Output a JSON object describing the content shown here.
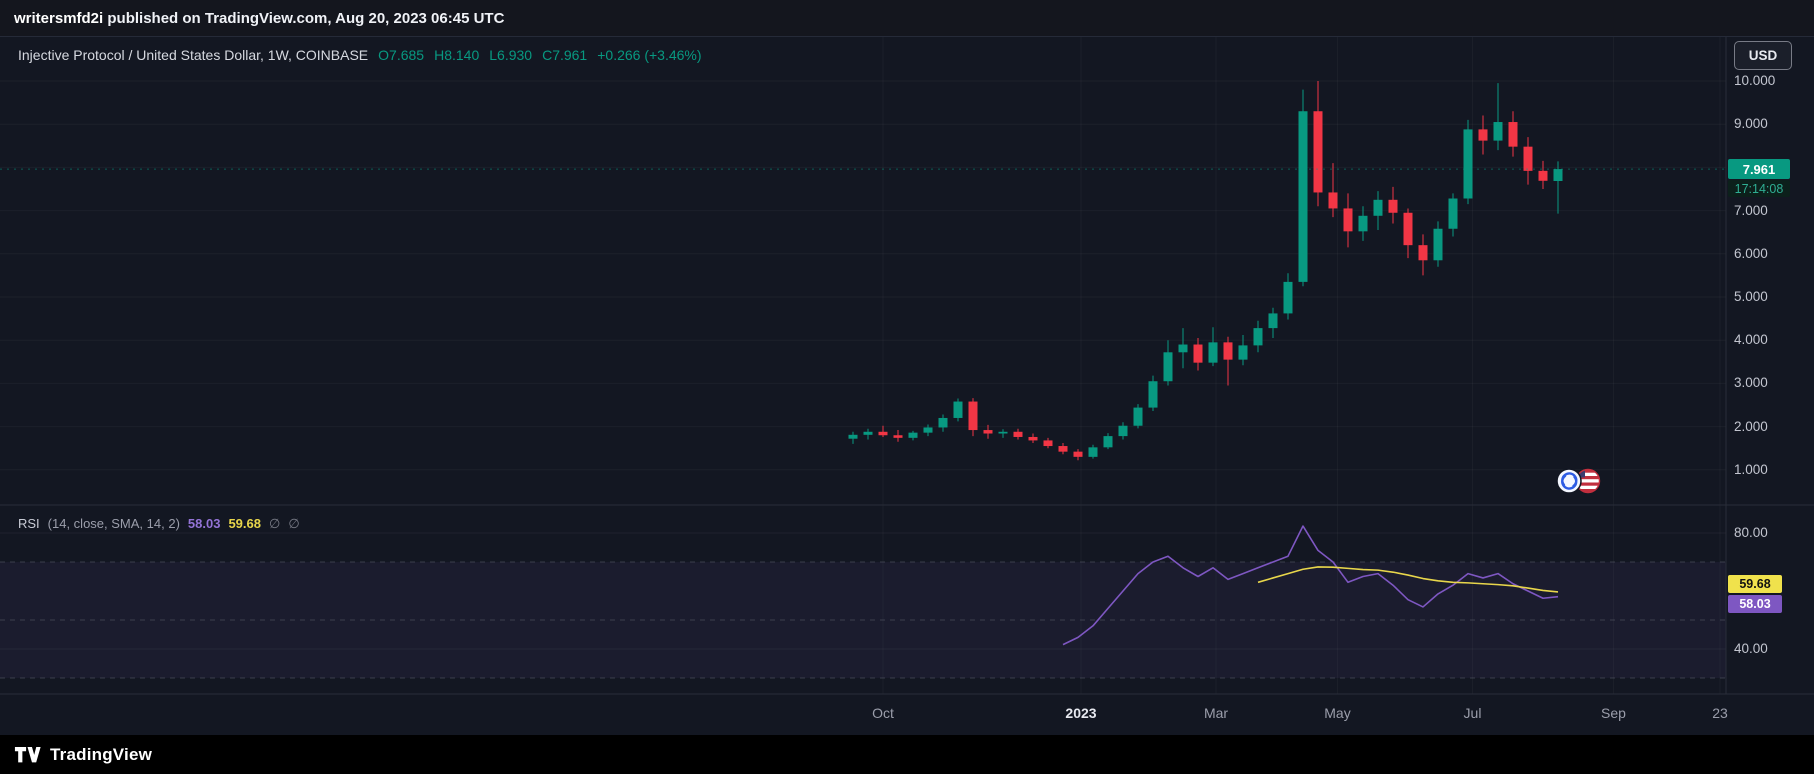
{
  "banner": {
    "username": "writersmfd2i",
    "rest": " published on TradingView.com, Aug 20, 2023 06:45 UTC"
  },
  "header": {
    "symbol_title": "Injective Protocol / United States Dollar, 1W, COINBASE",
    "ohlc": [
      "O7.685",
      "H8.140",
      "L6.930",
      "C7.961"
    ],
    "change": "+0.266 (+3.46%)"
  },
  "price_scale": {
    "currency_button": "USD",
    "labels": [
      {
        "text": "10.000",
        "value": 10
      },
      {
        "text": "9.000",
        "value": 9
      },
      {
        "text": "7.000",
        "value": 7
      },
      {
        "text": "6.000",
        "value": 6
      },
      {
        "text": "5.000",
        "value": 5
      },
      {
        "text": "4.000",
        "value": 4
      },
      {
        "text": "3.000",
        "value": 3
      },
      {
        "text": "2.000",
        "value": 2
      },
      {
        "text": "1.000",
        "value": 1
      }
    ],
    "price_badge": "7.961",
    "countdown": "17:14:08"
  },
  "rsi_panel": {
    "title": "RSI",
    "params": "(14, close, SMA, 14, 2)",
    "value": "58.03",
    "sma": "59.68",
    "hidden_1": "∅",
    "hidden_2": "∅",
    "scale_labels": [
      {
        "text": "80.00",
        "value": 80
      },
      {
        "text": "40.00",
        "value": 40
      }
    ]
  },
  "time_axis": {
    "ticks": [
      {
        "label": "Oct",
        "week": 2,
        "major": false
      },
      {
        "label": "2023",
        "week": 15.2,
        "major": true
      },
      {
        "label": "Mar",
        "week": 24.2,
        "major": false
      },
      {
        "label": "May",
        "week": 32.3,
        "major": false
      },
      {
        "label": "Jul",
        "week": 41.3,
        "major": false
      },
      {
        "label": "Sep",
        "week": 50.7,
        "major": false
      },
      {
        "label": "23",
        "week": 57.8,
        "major": false
      }
    ]
  },
  "footer": {
    "brand": "TradingView"
  },
  "colors": {
    "background": "#131722",
    "up": "#089981",
    "down": "#f23645",
    "rsi_line": "#7e57c2",
    "rsi_sma_line": "#e8d64b",
    "rsi_badge_yellow": "#f0e24c",
    "rsi_badge_purple": "#7e57c2",
    "price_badge": "#089981",
    "band_fill": "rgba(126,87,194,0.08)",
    "separator": "#2a2e39"
  },
  "chart_data": {
    "type": "candlestick",
    "title": "Injective Protocol / United States Dollar",
    "symbol": "INJUSD",
    "exchange": "COINBASE",
    "interval": "1W",
    "last_bar": {
      "open": 7.685,
      "high": 8.14,
      "low": 6.93,
      "close": 7.961,
      "change": 0.266,
      "change_pct": 3.46
    },
    "y_axis": {
      "min": 0.9,
      "max": 10.3,
      "ticks": [
        1,
        2,
        3,
        4,
        5,
        6,
        7,
        9,
        10
      ]
    },
    "dates": [
      "2022-09-19",
      "2022-09-26",
      "2022-10-03",
      "2022-10-10",
      "2022-10-17",
      "2022-10-24",
      "2022-10-31",
      "2022-11-07",
      "2022-11-14",
      "2022-11-21",
      "2022-11-28",
      "2022-12-05",
      "2022-12-12",
      "2022-12-19",
      "2022-12-26",
      "2023-01-02",
      "2023-01-09",
      "2023-01-16",
      "2023-01-23",
      "2023-01-30",
      "2023-02-06",
      "2023-02-13",
      "2023-02-20",
      "2023-02-27",
      "2023-03-06",
      "2023-03-13",
      "2023-03-20",
      "2023-03-27",
      "2023-04-03",
      "2023-04-10",
      "2023-04-17",
      "2023-04-24",
      "2023-05-01",
      "2023-05-08",
      "2023-05-15",
      "2023-05-22",
      "2023-05-29",
      "2023-06-05",
      "2023-06-12",
      "2023-06-19",
      "2023-06-26",
      "2023-07-03",
      "2023-07-10",
      "2023-07-17",
      "2023-07-24",
      "2023-07-31",
      "2023-08-07",
      "2023-08-14"
    ],
    "candles": [
      [
        1.72,
        1.88,
        1.6,
        1.81
      ],
      [
        1.81,
        1.95,
        1.7,
        1.88
      ],
      [
        1.88,
        2.02,
        1.76,
        1.8
      ],
      [
        1.8,
        1.92,
        1.65,
        1.74
      ],
      [
        1.74,
        1.9,
        1.68,
        1.86
      ],
      [
        1.86,
        2.05,
        1.78,
        1.98
      ],
      [
        1.98,
        2.28,
        1.88,
        2.2
      ],
      [
        2.2,
        2.65,
        2.12,
        2.58
      ],
      [
        2.58,
        2.66,
        1.78,
        1.92
      ],
      [
        1.92,
        2.04,
        1.72,
        1.84
      ],
      [
        1.84,
        1.94,
        1.74,
        1.88
      ],
      [
        1.88,
        1.95,
        1.7,
        1.76
      ],
      [
        1.76,
        1.84,
        1.62,
        1.68
      ],
      [
        1.68,
        1.74,
        1.5,
        1.55
      ],
      [
        1.55,
        1.62,
        1.36,
        1.42
      ],
      [
        1.42,
        1.48,
        1.22,
        1.3
      ],
      [
        1.3,
        1.58,
        1.26,
        1.52
      ],
      [
        1.52,
        1.85,
        1.48,
        1.78
      ],
      [
        1.78,
        2.1,
        1.7,
        2.02
      ],
      [
        2.02,
        2.52,
        1.96,
        2.44
      ],
      [
        2.44,
        3.18,
        2.36,
        3.05
      ],
      [
        3.05,
        4.0,
        2.95,
        3.72
      ],
      [
        3.72,
        4.28,
        3.35,
        3.9
      ],
      [
        3.9,
        4.05,
        3.3,
        3.48
      ],
      [
        3.48,
        4.3,
        3.4,
        3.95
      ],
      [
        3.95,
        4.08,
        2.95,
        3.55
      ],
      [
        3.55,
        4.12,
        3.42,
        3.88
      ],
      [
        3.88,
        4.45,
        3.72,
        4.28
      ],
      [
        4.28,
        4.75,
        4.05,
        4.62
      ],
      [
        4.62,
        5.55,
        4.48,
        5.35
      ],
      [
        5.35,
        9.8,
        5.25,
        9.3
      ],
      [
        9.3,
        10.0,
        7.1,
        7.42
      ],
      [
        7.42,
        8.1,
        6.85,
        7.05
      ],
      [
        7.05,
        7.4,
        6.15,
        6.52
      ],
      [
        6.52,
        7.1,
        6.3,
        6.88
      ],
      [
        6.88,
        7.45,
        6.55,
        7.25
      ],
      [
        7.25,
        7.55,
        6.7,
        6.95
      ],
      [
        6.95,
        7.05,
        5.9,
        6.2
      ],
      [
        6.2,
        6.45,
        5.5,
        5.85
      ],
      [
        5.85,
        6.75,
        5.7,
        6.58
      ],
      [
        6.58,
        7.4,
        6.4,
        7.28
      ],
      [
        7.28,
        9.1,
        7.15,
        8.88
      ],
      [
        8.88,
        9.2,
        8.3,
        8.62
      ],
      [
        8.62,
        9.95,
        8.4,
        9.05
      ],
      [
        9.05,
        9.3,
        8.25,
        8.48
      ],
      [
        8.48,
        8.7,
        7.6,
        7.92
      ],
      [
        7.92,
        8.15,
        7.5,
        7.69
      ],
      [
        7.685,
        8.14,
        6.93,
        7.961
      ]
    ],
    "indicator": {
      "name": "RSI",
      "length": 14,
      "source": "close",
      "ma_type": "SMA",
      "ma_length": 14,
      "levels": {
        "upper": 70,
        "middle": 50,
        "lower": 30
      },
      "rsi_start_index": 14,
      "rsi": [
        41.5,
        44,
        48,
        54,
        60,
        66,
        70,
        72,
        68,
        65,
        68,
        64,
        66,
        68,
        70,
        72,
        82.4,
        74,
        70,
        63,
        65,
        66,
        62,
        57,
        54.5,
        59,
        62,
        66,
        64.5,
        66,
        62.5,
        60,
        57.5,
        58.03
      ],
      "sma_start_index": 27,
      "sma": [
        63,
        64.5,
        66,
        67.5,
        68.3,
        68.2,
        67.8,
        67.4,
        67.2,
        66.5,
        65.5,
        64.3,
        63.5,
        63.0,
        62.8,
        62.5,
        62.2,
        61.8,
        61.0,
        60.2,
        59.68
      ],
      "current": {
        "rsi": 58.03,
        "sma": 59.68
      }
    }
  }
}
